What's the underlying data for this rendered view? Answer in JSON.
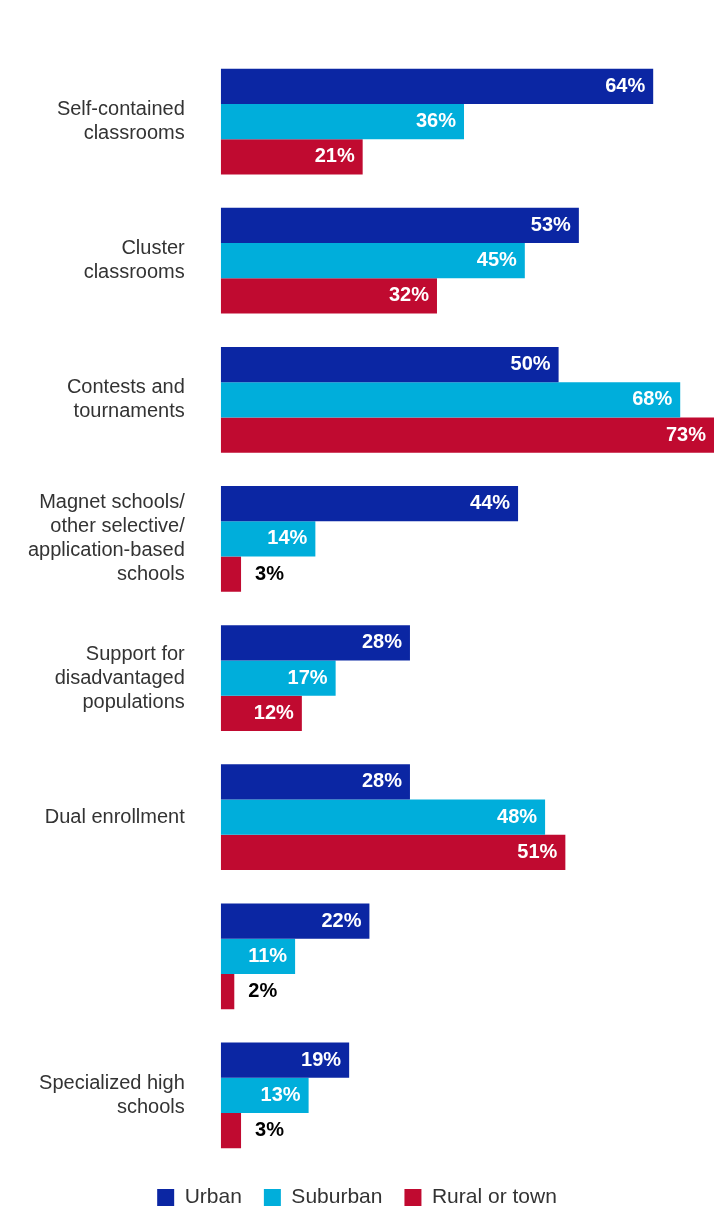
{
  "chart_data": {
    "type": "bar",
    "orientation": "horizontal",
    "categories": [
      "Self-contained classrooms",
      "Cluster classrooms",
      "Contests and tournaments",
      "Magnet schools/ other selective/ application-based schools",
      "Support for disadvantaged populations",
      "Dual enrollment",
      null,
      "Specialized high schools"
    ],
    "series": [
      {
        "name": "Urban",
        "color": "#0b26a3",
        "values": [
          64,
          53,
          50,
          44,
          28,
          28,
          22,
          19
        ],
        "value_labels": [
          "64%",
          "53%",
          "50%",
          "44%",
          "28%",
          "28%",
          "22%",
          "19%"
        ]
      },
      {
        "name": "Suburban",
        "color": "#00aedb",
        "values": [
          36,
          45,
          68,
          14,
          17,
          48,
          11,
          13
        ],
        "value_labels": [
          "36%",
          "45%",
          "68%",
          "14%",
          "17%",
          "48%",
          "11%",
          "13%"
        ]
      },
      {
        "name": "Rural or town",
        "color": "#c00a30",
        "values": [
          21,
          32,
          73,
          3,
          12,
          51,
          2,
          3
        ],
        "value_labels": [
          "21%",
          "32%",
          "73%",
          "3%",
          "12%",
          "51%",
          "2%",
          "3%"
        ]
      }
    ],
    "legend": "bottom"
  }
}
